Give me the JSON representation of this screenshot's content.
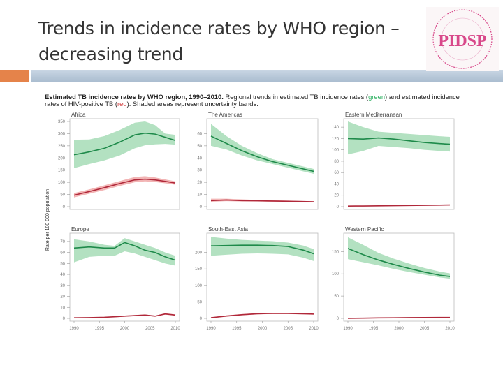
{
  "slide": {
    "title_line1": "Trends in incidence rates by WHO region –",
    "title_line2": "decreasing trend",
    "logo_text": "PEDIATRIC INFECTIOUS DISEASE SOCIETY OF THE PHILIPPINES • 1993 • PIDSP"
  },
  "caption": {
    "bold": "Estimated TB incidence rates by WHO region, 1990–2010.",
    "text1": " Regional trends in estimated TB incidence rates (",
    "green_word": "green",
    "text2": ") and estimated incidence rates of HIV-positive TB (",
    "red_word": "red",
    "text3": "). Shaded areas represent uncertainty bands."
  },
  "colors": {
    "green_line": "#1e8a4a",
    "green_band": "#a6dcb6",
    "red_line": "#b0283a",
    "red_band": "#f0a8a8",
    "accent": "#e5834a"
  },
  "chart_data": {
    "type": "line",
    "ylabel": "Rate per 100 000 population",
    "x_ticks": [
      1990,
      1995,
      2000,
      2005,
      2010
    ],
    "panels": [
      {
        "name": "Africa",
        "ylim": [
          0,
          350
        ],
        "yticks": [
          0,
          50,
          100,
          150,
          200,
          250,
          300,
          350
        ],
        "x": [
          1990,
          1993,
          1996,
          1999,
          2002,
          2004,
          2006,
          2008,
          2010
        ],
        "total": [
          213,
          225,
          240,
          265,
          295,
          302,
          298,
          285,
          272
        ],
        "total_lo": [
          158,
          175,
          190,
          210,
          240,
          252,
          256,
          258,
          255
        ],
        "total_hi": [
          275,
          276,
          290,
          315,
          345,
          350,
          335,
          300,
          295
        ],
        "hiv": [
          47,
          62,
          78,
          95,
          110,
          113,
          110,
          104,
          97
        ],
        "hiv_lo": [
          38,
          53,
          68,
          85,
          100,
          104,
          101,
          96,
          90
        ],
        "hiv_hi": [
          56,
          71,
          88,
          105,
          122,
          125,
          120,
          112,
          104
        ]
      },
      {
        "name": "The Americas",
        "ylim": [
          0,
          70
        ],
        "yticks": [
          0,
          10,
          20,
          30,
          40,
          50,
          60
        ],
        "x": [
          1990,
          1993,
          1996,
          1999,
          2002,
          2005,
          2008,
          2010
        ],
        "total": [
          58,
          52,
          46,
          41,
          37,
          34,
          31,
          29
        ],
        "total_lo": [
          50,
          47,
          42,
          38,
          35,
          32,
          29,
          27
        ],
        "total_hi": [
          68,
          58,
          50,
          44,
          39,
          36,
          33,
          31
        ],
        "hiv": [
          5,
          5.5,
          5,
          4.8,
          4.6,
          4.4,
          4.2,
          4
        ],
        "hiv_lo": [
          4,
          4.5,
          4.2,
          4.2,
          4,
          3.8,
          3.7,
          3.6
        ],
        "hiv_hi": [
          6.5,
          6.5,
          6,
          5.5,
          5.2,
          5,
          4.6,
          4.4
        ]
      },
      {
        "name": "Eastern Mediterranean",
        "ylim": [
          0,
          150
        ],
        "yticks": [
          0,
          20,
          40,
          60,
          80,
          100,
          120,
          140
        ],
        "x": [
          1990,
          1993,
          1996,
          1999,
          2002,
          2005,
          2008,
          2010
        ],
        "total": [
          120,
          119,
          121,
          119,
          116,
          113,
          111,
          110
        ],
        "total_lo": [
          92,
          98,
          107,
          105,
          103,
          100,
          98,
          97
        ],
        "total_hi": [
          150,
          140,
          132,
          130,
          128,
          126,
          124,
          123
        ],
        "hiv": [
          1,
          1.2,
          1.5,
          1.8,
          2,
          2.3,
          2.7,
          3
        ],
        "hiv_lo": [
          0.6,
          0.8,
          1,
          1.3,
          1.5,
          1.8,
          2.1,
          2.4
        ],
        "hiv_hi": [
          1.4,
          1.6,
          2,
          2.3,
          2.5,
          2.8,
          3.3,
          3.6
        ]
      },
      {
        "name": "Europe",
        "ylim": [
          0,
          75
        ],
        "yticks": [
          0,
          10,
          20,
          30,
          40,
          50,
          60,
          70
        ],
        "x": [
          1990,
          1993,
          1996,
          1998,
          2000,
          2002,
          2004,
          2006,
          2008,
          2010
        ],
        "total": [
          64,
          65,
          64,
          64,
          69,
          66,
          62,
          60,
          56,
          53
        ],
        "total_lo": [
          51,
          56,
          57,
          57,
          61,
          59,
          56,
          53,
          50,
          48
        ],
        "total_hi": [
          72,
          70,
          67,
          66,
          73,
          70,
          67,
          64,
          60,
          57
        ],
        "hiv": [
          0.5,
          0.7,
          1,
          1.5,
          2,
          2.5,
          3,
          2,
          4,
          3
        ],
        "hiv_lo": [
          0.3,
          0.5,
          0.7,
          1.1,
          1.5,
          2,
          2.4,
          1.6,
          3.3,
          2.5
        ],
        "hiv_hi": [
          0.7,
          0.9,
          1.3,
          1.9,
          2.5,
          3,
          3.6,
          2.5,
          4.6,
          3.6
        ]
      },
      {
        "name": "South-East Asia",
        "ylim": [
          0,
          250
        ],
        "yticks": [
          0,
          50,
          100,
          150,
          200
        ],
        "x": [
          1990,
          1993,
          1996,
          1999,
          2002,
          2005,
          2008,
          2010
        ],
        "total": [
          220,
          221,
          222,
          222,
          221,
          218,
          207,
          196
        ],
        "total_lo": [
          190,
          193,
          196,
          197,
          196,
          194,
          184,
          174
        ],
        "total_hi": [
          247,
          242,
          238,
          236,
          234,
          230,
          221,
          210
        ],
        "hiv": [
          2,
          7,
          11,
          14,
          15,
          15,
          14,
          13
        ],
        "hiv_lo": [
          1,
          5,
          9,
          12,
          13,
          13,
          12,
          11
        ],
        "hiv_hi": [
          3,
          9,
          13,
          16,
          17,
          17,
          16,
          15
        ]
      },
      {
        "name": "Western Pacific",
        "ylim": [
          0,
          185
        ],
        "yticks": [
          0,
          50,
          100,
          150
        ],
        "x": [
          1990,
          1993,
          1996,
          1999,
          2002,
          2005,
          2008,
          2010
        ],
        "total": [
          157,
          143,
          131,
          121,
          112,
          104,
          97,
          94
        ],
        "total_lo": [
          133,
          126,
          119,
          111,
          104,
          98,
          92,
          89
        ],
        "total_hi": [
          182,
          165,
          147,
          134,
          123,
          113,
          105,
          101
        ],
        "hiv": [
          0,
          0.5,
          1,
          1.3,
          1.6,
          1.8,
          2,
          2
        ],
        "hiv_lo": [
          0,
          0.3,
          0.7,
          1,
          1.2,
          1.4,
          1.6,
          1.6
        ],
        "hiv_hi": [
          0.3,
          0.8,
          1.3,
          1.6,
          2,
          2.2,
          2.4,
          2.4
        ]
      }
    ]
  }
}
